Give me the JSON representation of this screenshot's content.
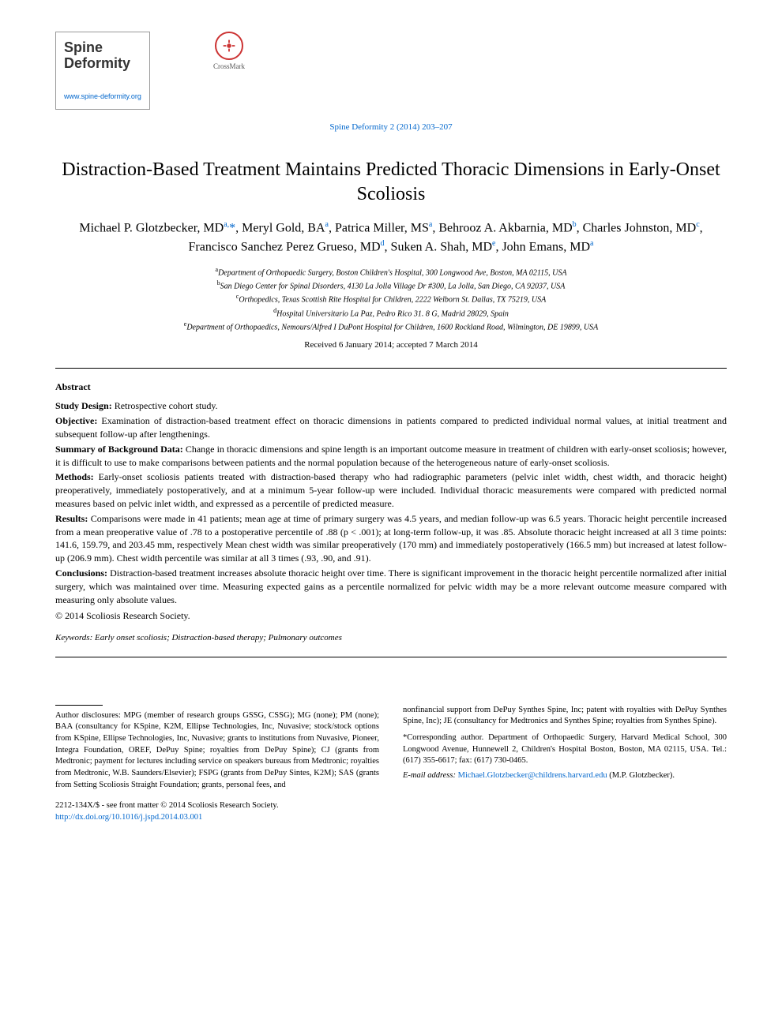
{
  "journal": {
    "logo_title": "Spine Deformity",
    "logo_url": "www.spine-deformity.org",
    "crossmark_label": "CrossMark",
    "citation": "Spine Deformity 2 (2014) 203–207"
  },
  "article": {
    "title": "Distraction-Based Treatment Maintains Predicted Thoracic Dimensions in Early-Onset Scoliosis",
    "authors_html": "Michael P. Glotzbecker, MD|a,*|, Meryl Gold, BA|a|, Patrica Miller, MS|a|, Behrooz A. Akbarnia, MD|b|, Charles Johnston, MD|c|, Francisco Sanchez Perez Grueso, MD|d|, Suken A. Shah, MD|e|, John Emans, MD|a|",
    "affiliations": [
      {
        "sup": "a",
        "text": "Department of Orthopaedic Surgery, Boston Children's Hospital, 300 Longwood Ave, Boston, MA 02115, USA"
      },
      {
        "sup": "b",
        "text": "San Diego Center for Spinal Disorders, 4130 La Jolla Village Dr #300, La Jolla, San Diego, CA 92037, USA"
      },
      {
        "sup": "c",
        "text": "Orthopedics, Texas Scottish Rite Hospital for Children, 2222 Welborn St. Dallas, TX 75219, USA"
      },
      {
        "sup": "d",
        "text": "Hospital Universitario La Paz, Pedro Rico 31. 8 G, Madrid 28029, Spain"
      },
      {
        "sup": "e",
        "text": "Department of Orthopaedics, Nemours/Alfred I DuPont Hospital for Children, 1600 Rockland Road, Wilmington, DE 19899, USA"
      }
    ],
    "dates": "Received 6 January 2014; accepted 7 March 2014"
  },
  "abstract": {
    "heading": "Abstract",
    "study_design_label": "Study Design:",
    "study_design": " Retrospective cohort study.",
    "objective_label": "Objective:",
    "objective": " Examination of distraction-based treatment effect on thoracic dimensions in patients compared to predicted individual normal values, at initial treatment and subsequent follow-up after lengthenings.",
    "background_label": "Summary of Background Data:",
    "background": " Change in thoracic dimensions and spine length is an important outcome measure in treatment of children with early-onset scoliosis; however, it is difficult to use to make comparisons between patients and the normal population because of the heterogeneous nature of early-onset scoliosis.",
    "methods_label": "Methods:",
    "methods": " Early-onset scoliosis patients treated with distraction-based therapy who had radiographic parameters (pelvic inlet width, chest width, and thoracic height) preoperatively, immediately postoperatively, and at a minimum 5-year follow-up were included. Individual thoracic measurements were compared with predicted normal measures based on pelvic inlet width, and expressed as a percentile of predicted measure.",
    "results_label": "Results:",
    "results": " Comparisons were made in 41 patients; mean age at time of primary surgery was 4.5 years, and median follow-up was 6.5 years. Thoracic height percentile increased from a mean preoperative value of .78 to a postoperative percentile of .88 (p < .001); at long-term follow-up, it was .85. Absolute thoracic height increased at all 3 time points: 141.6, 159.79, and 203.45 mm, respectively Mean chest width was similar preoperatively (170 mm) and immediately postoperatively (166.5 mm) but increased at latest follow-up (206.9 mm). Chest width percentile was similar at all 3 times (.93, .90, and .91).",
    "conclusions_label": "Conclusions:",
    "conclusions": " Distraction-based treatment increases absolute thoracic height over time. There is significant improvement in the thoracic height percentile normalized after initial surgery, which was maintained over time. Measuring expected gains as a percentile normalized for pelvic width may be a more relevant outcome measure compared with measuring only absolute values.",
    "copyright": "© 2014 Scoliosis Research Society.",
    "keywords_label": "Keywords:",
    "keywords": " Early onset scoliosis; Distraction-based therapy; Pulmonary outcomes"
  },
  "footer": {
    "disclosures_left": "Author disclosures: MPG (member of research groups GSSG, CSSG); MG (none); PM (none); BAA (consultancy for KSpine, K2M, Ellipse Technologies, Inc, Nuvasive; stock/stock options from KSpine, Ellipse Technologies, Inc, Nuvasive; grants to institutions from Nuvasive, Pioneer, Integra Foundation, OREF, DePuy Spine; royalties from DePuy Spine); CJ (grants from Medtronic; payment for lectures including service on speakers bureaus from Medtronic; royalties from Medtronic, W.B. Saunders/Elsevier); FSPG (grants from DePuy Sintes, K2M); SAS (grants from Setting Scoliosis Straight Foundation; grants, personal fees, and",
    "disclosures_right": "nonfinancial support from DePuy Synthes Spine, Inc; patent with royalties with DePuy Synthes Spine, Inc); JE (consultancy for Medtronics and Synthes Spine; royalties from Synthes Spine).",
    "corresponding": "*Corresponding author. Department of Orthopaedic Surgery, Harvard Medical School, 300 Longwood Avenue, Hunnewell 2, Children's Hospital Boston, Boston, MA 02115, USA. Tel.: (617) 355-6617; fax: (617) 730-0465.",
    "email_label": "E-mail address:",
    "email": "Michael.Glotzbecker@childrens.harvard.edu",
    "email_suffix": " (M.P. Glotzbecker).",
    "issn": "2212-134X/$ - see front matter © 2014 Scoliosis Research Society.",
    "doi": "http://dx.doi.org/10.1016/j.jspd.2014.03.001"
  },
  "colors": {
    "link": "#0066cc",
    "crossmark_ring": "#cc3333",
    "text": "#000000",
    "background": "#ffffff"
  }
}
